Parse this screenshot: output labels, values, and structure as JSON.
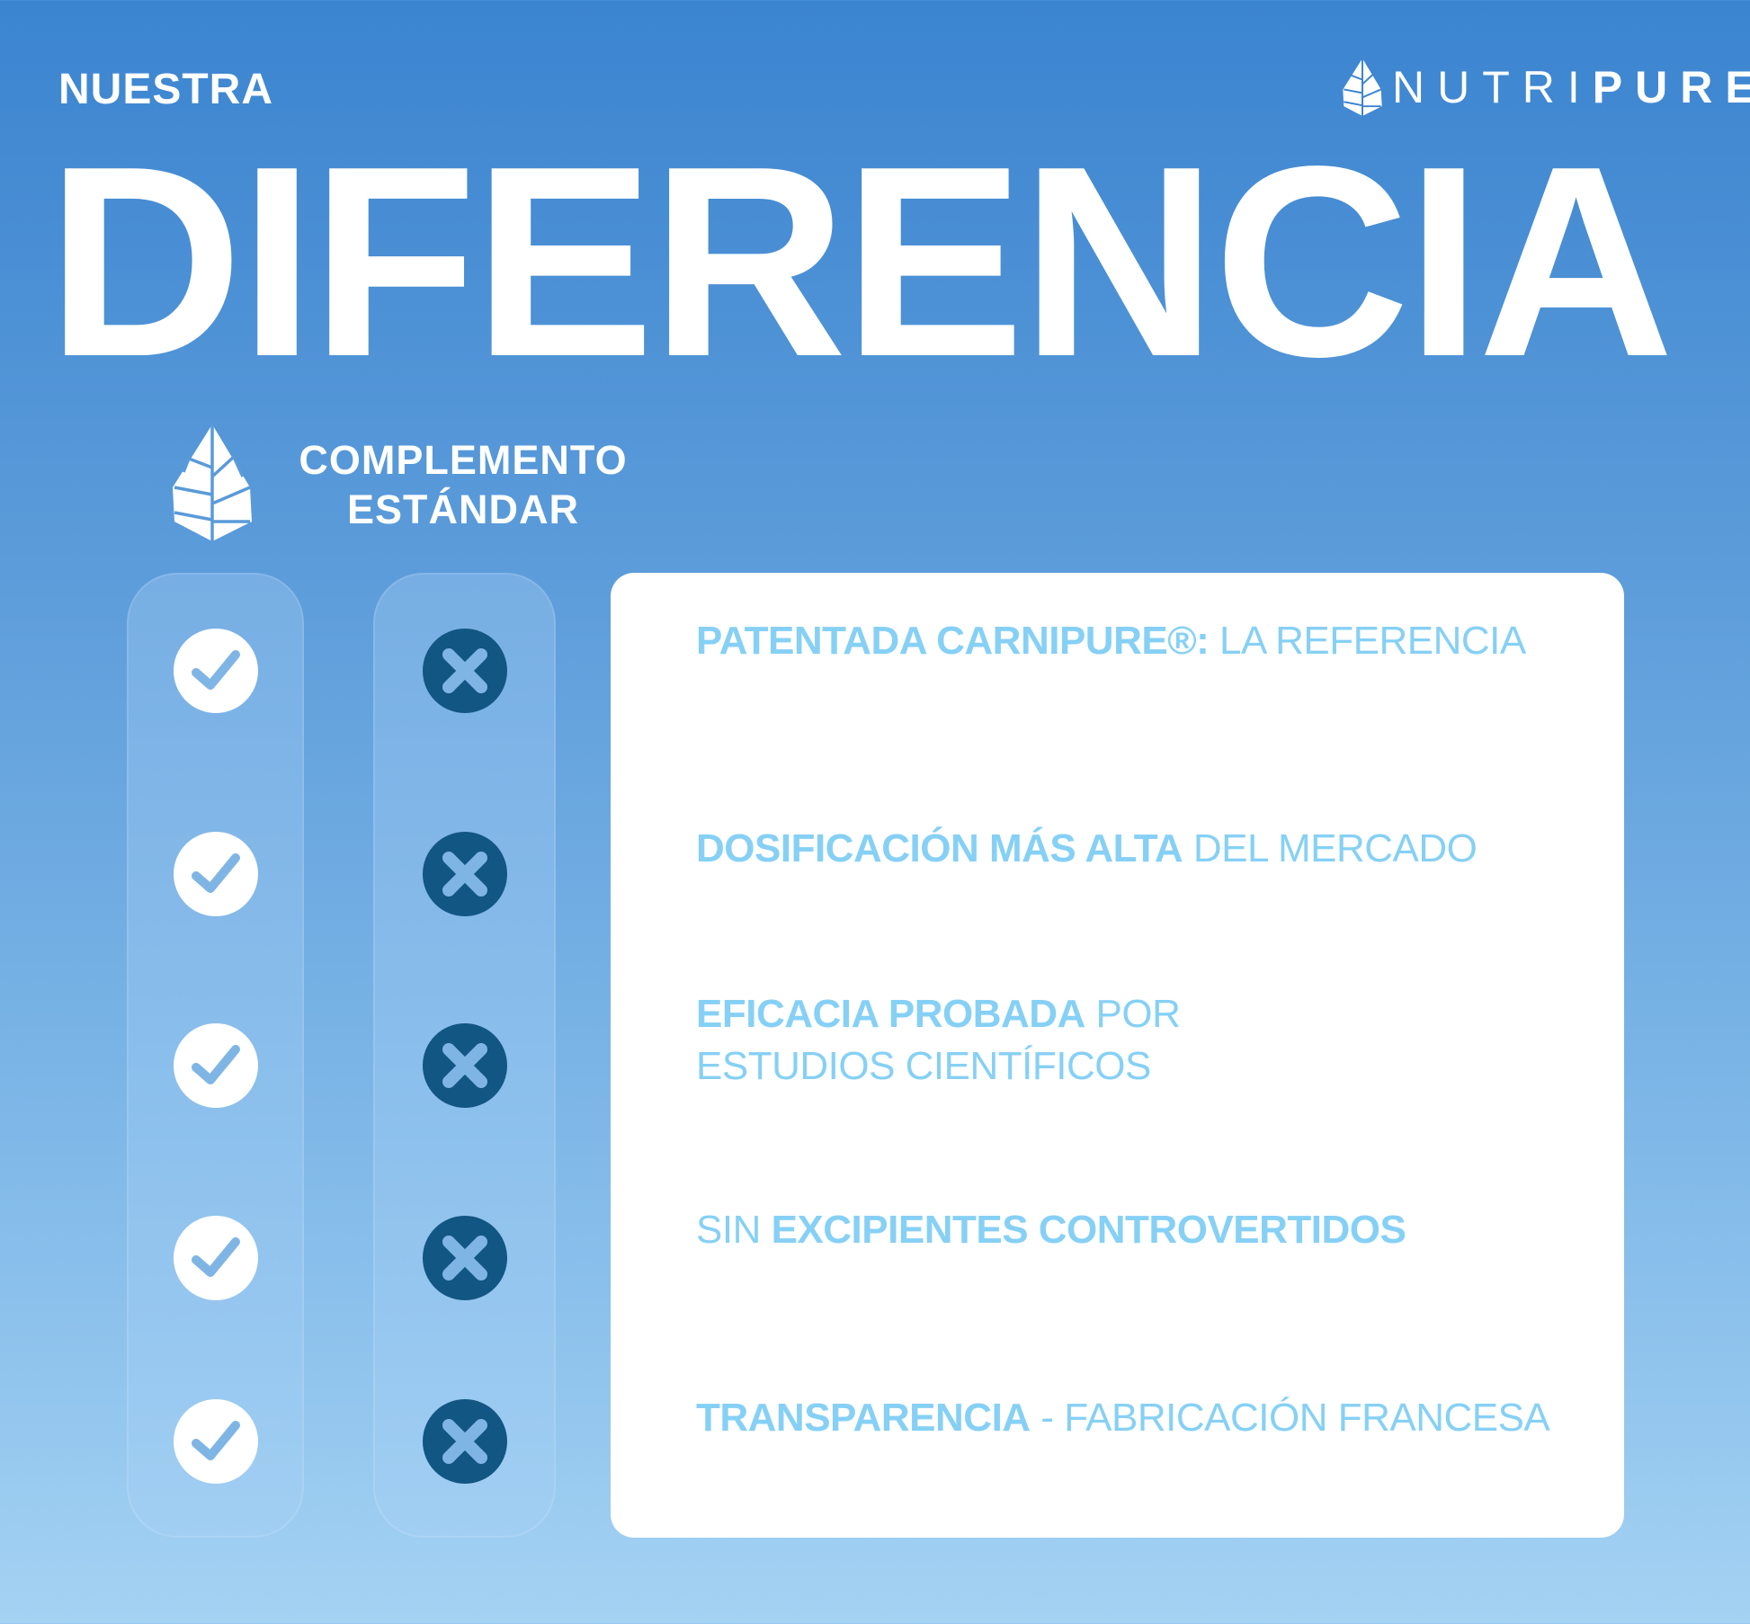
{
  "header": {
    "kicker": "NUESTRA",
    "title": "DIFERENCIA",
    "brand": {
      "light": "NUTRI",
      "bold": "PURE",
      "icon": "leaf-icon"
    }
  },
  "columns": {
    "nutripure": {
      "icon": "leaf-icon",
      "mark": "check-icon"
    },
    "standard": {
      "label_line1": "COMPLEMENTO",
      "label_line2": "ESTÁNDAR",
      "mark": "x-icon"
    }
  },
  "features": [
    {
      "parts": [
        {
          "t": "PATENTADA CARNIPURE®:",
          "b": true
        },
        {
          "t": " LA REFERENCIA",
          "b": false
        }
      ]
    },
    {
      "parts": [
        {
          "t": "DOSIFICACIÓN MÁS ALTA",
          "b": true
        },
        {
          "t": " DEL MERCADO",
          "b": false
        }
      ]
    },
    {
      "parts": [
        {
          "t": "EFICACIA PROBADA",
          "b": true
        },
        {
          "t": " POR",
          "b": false
        }
      ],
      "line2": "ESTUDIOS CIENTÍFICOS"
    },
    {
      "parts": [
        {
          "t": "SIN ",
          "b": false
        },
        {
          "t": "EXCIPIENTES CONTROVERTIDOS",
          "b": true
        }
      ]
    },
    {
      "parts": [
        {
          "t": "TRANSPARENCIA",
          "b": true
        },
        {
          "t": " - FABRICACIÓN FRANCESA",
          "b": false
        }
      ]
    }
  ],
  "colors": {
    "text_accent": "#86d0f5",
    "x_circle": "#125683",
    "bg_top": "#3b84d0",
    "bg_bottom": "#a4d2f3"
  }
}
